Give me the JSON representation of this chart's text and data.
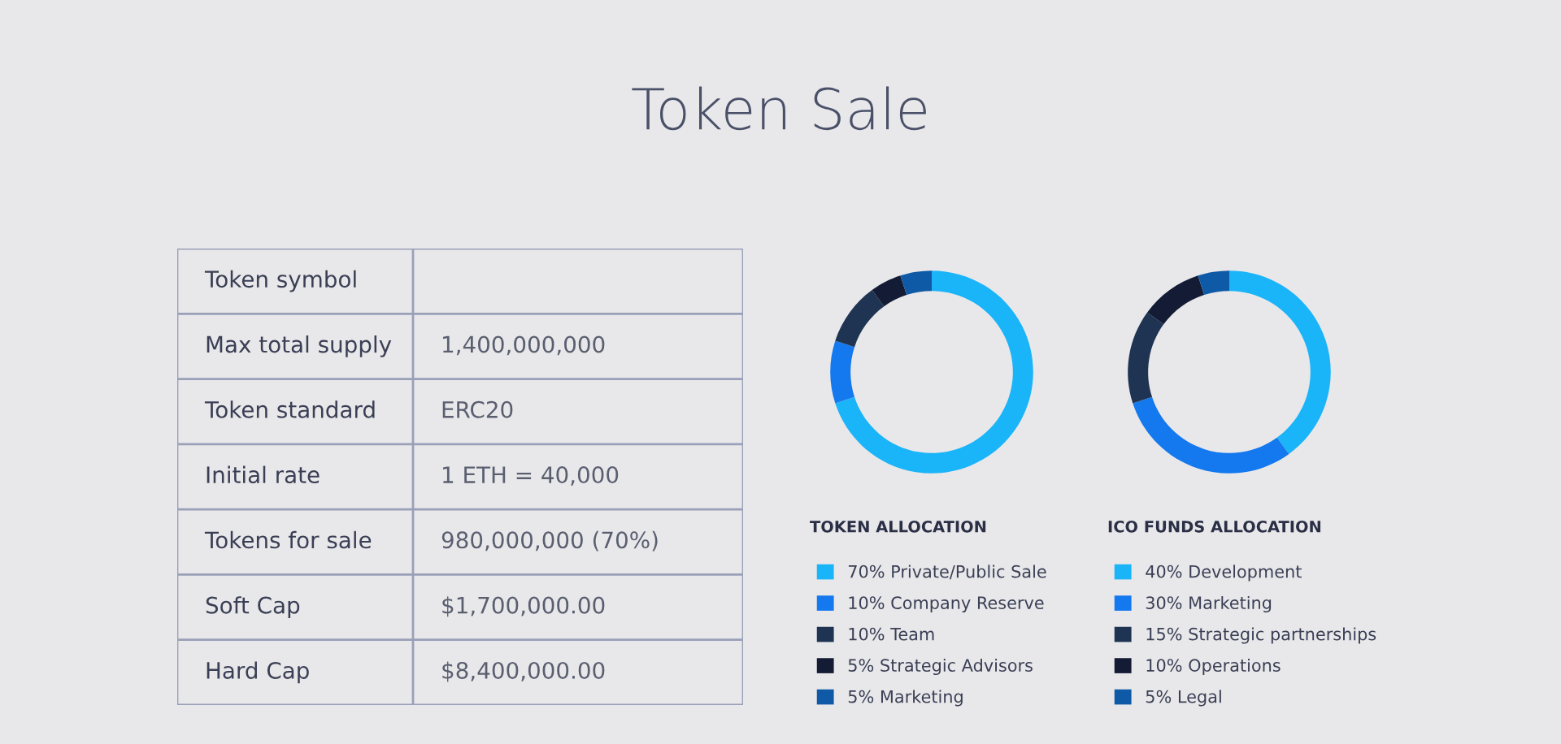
{
  "chart_data": [
    {
      "type": "other",
      "title": "Token Sale",
      "y_categories": [
        "Token symbol",
        "Max total supply",
        "Token standard",
        "Initial rate",
        "Tokens for sale",
        "Soft Cap",
        "Hard Cap"
      ],
      "cell_labels": [
        [
          null
        ],
        [
          "1,400,000,000"
        ],
        [
          "ERC20"
        ],
        [
          "1 ETH = 40,000"
        ],
        [
          "980,000,000 (70%)"
        ],
        [
          "$1,700,000.00"
        ],
        [
          "$8,400,000.00"
        ]
      ]
    },
    {
      "type": "donut",
      "title": "TOKEN ALLOCATION",
      "legend": "bottom",
      "categories": [
        "70% Private/Public Sale",
        "10% Company Reserve",
        "10% Team",
        "5% Strategic Advisors",
        "5% Marketing"
      ],
      "values": [
        70,
        10,
        10,
        5,
        5
      ],
      "colors": [
        "#1ab4f9",
        "#1478ee",
        "#1f3352",
        "#141c35",
        "#0f5aa6"
      ]
    },
    {
      "type": "donut",
      "title": "ICO FUNDS ALLOCATION",
      "legend": "bottom",
      "categories": [
        "40% Development",
        "30% Marketing",
        "15% Strategic partnerships",
        "10% Operations",
        "5% Legal"
      ],
      "values": [
        40,
        30,
        15,
        10,
        5
      ],
      "colors": [
        "#1ab4f9",
        "#1478ee",
        "#1f3352",
        "#141c35",
        "#0f5aa6"
      ]
    }
  ]
}
